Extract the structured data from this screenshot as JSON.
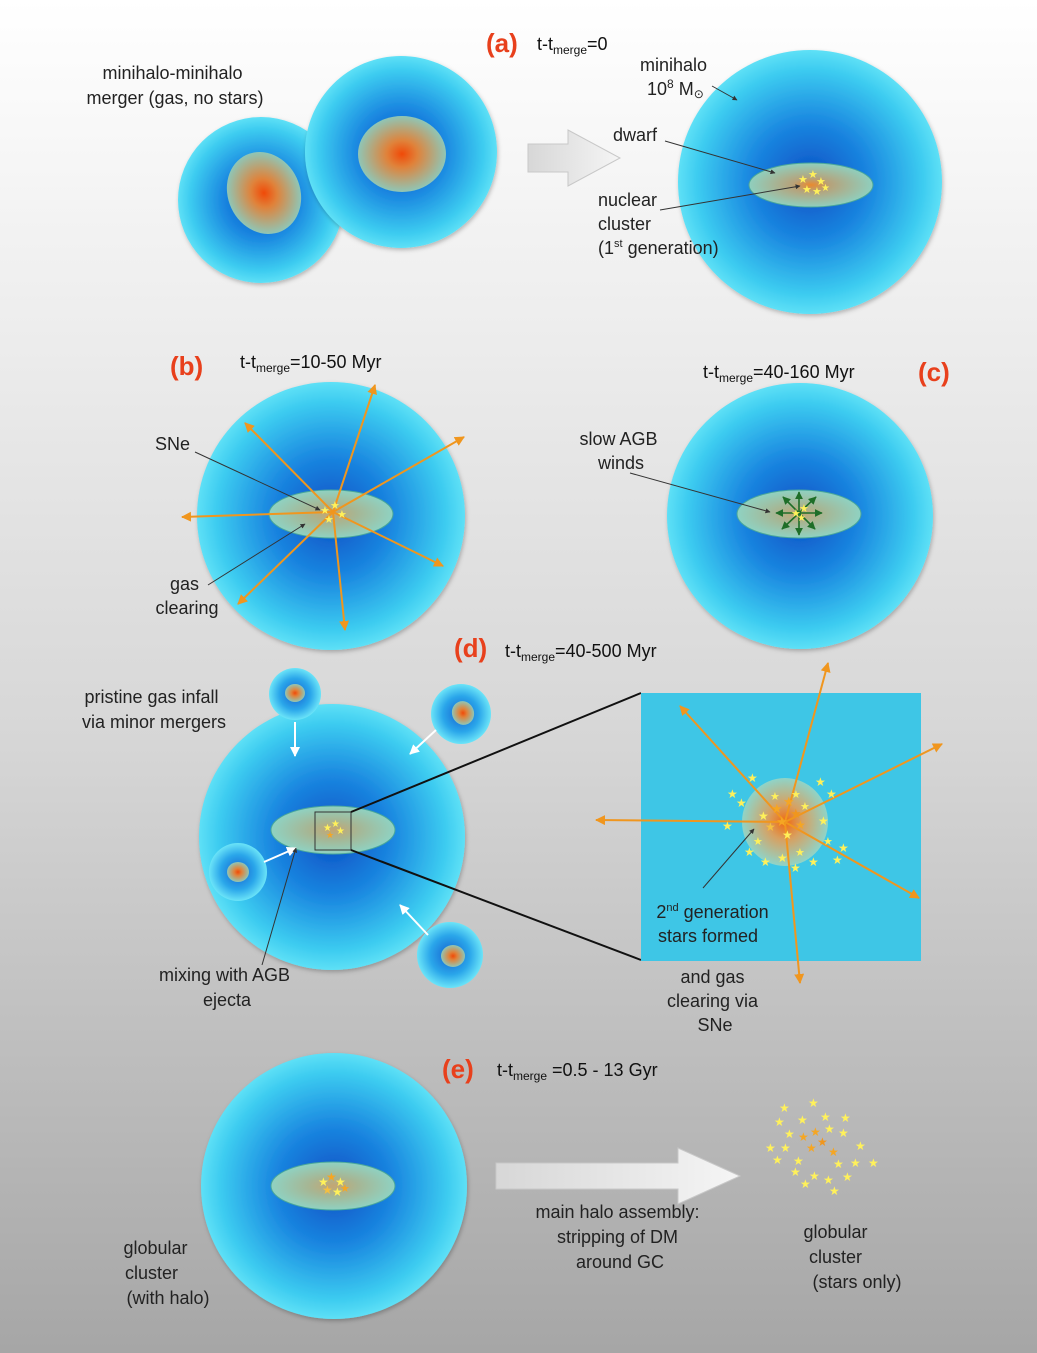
{
  "panels": {
    "a": {
      "letter": "(a)",
      "time": {
        "pre": "t-t",
        "sub": "merge",
        "post": "=0"
      },
      "merger_label": [
        "minihalo-minihalo",
        "merger (gas, no stars)"
      ],
      "minihalo_label": "minihalo",
      "mass_label": {
        "base": "10",
        "exp": "8",
        "unit": " M",
        "symbol": "⊙"
      },
      "dwarf_label": "dwarf",
      "nuclear_label": [
        "nuclear",
        "cluster"
      ],
      "generation_label": {
        "pre": "(1",
        "sup": "st",
        "post": " generation)"
      }
    },
    "b": {
      "letter": "(b)",
      "time": {
        "pre": "t-t",
        "sub": "merge",
        "post": "=10-50 Myr"
      },
      "sne_label": "SNe",
      "gas_clearing_label": [
        "gas",
        "clearing"
      ]
    },
    "c": {
      "letter": "(c)",
      "time": {
        "pre": "t-t",
        "sub": "merge",
        "post": "=40-160 Myr"
      },
      "agb_label": [
        "slow AGB",
        "winds"
      ]
    },
    "d": {
      "letter": "(d)",
      "time": {
        "pre": "t-t",
        "sub": "merge",
        "post": "=40-500 Myr"
      },
      "infall_label": [
        "pristine gas infall",
        "via minor mergers"
      ],
      "mixing_label": [
        "mixing with AGB",
        "ejecta"
      ],
      "second_gen_label": {
        "pre": "2",
        "sup": "nd",
        "post": " generation",
        "line2": "stars formed"
      },
      "sne_clearing_label": [
        "and gas",
        "clearing via",
        "SNe"
      ]
    },
    "e": {
      "letter": "(e)",
      "time": {
        "pre": "t-t",
        "sub": "merge",
        "post": " =0.5 - 13 Gyr"
      },
      "gc_halo_label": [
        "globular",
        "cluster",
        "(with halo)"
      ],
      "assembly_label": [
        "main halo assembly:",
        "stripping of DM",
        "around GC"
      ],
      "gc_stars_label": [
        "globular",
        "cluster",
        "(stars only)"
      ]
    }
  },
  "colors": {
    "panel_letter": "#e8401c",
    "halo_edge": "#49d8f2",
    "halo_core": "#0c5fd0",
    "sne_arrow": "#f0961e",
    "agb_arrow": "#1e6e28",
    "star": "#fff15a",
    "star_core": "#f5a623",
    "background_top": "#ffffff",
    "background_bottom": "#a9a9a9"
  }
}
